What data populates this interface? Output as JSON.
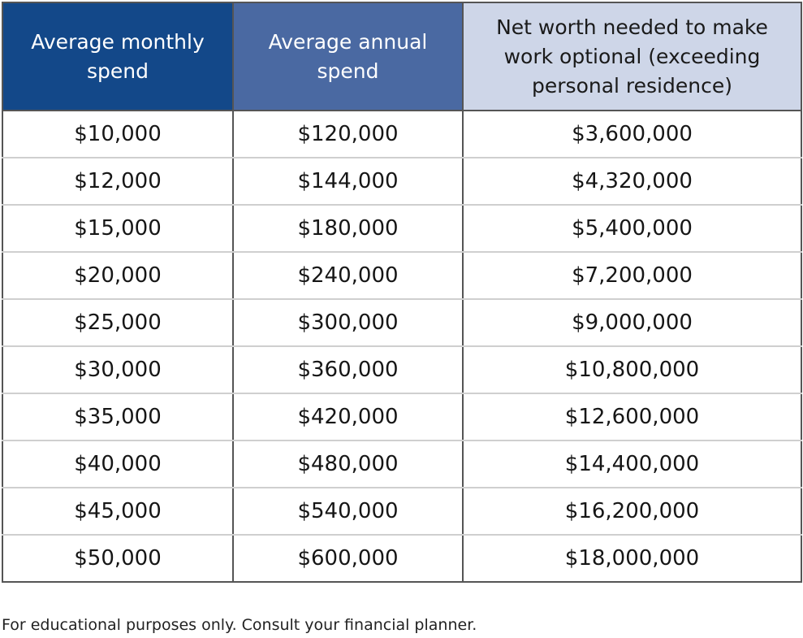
{
  "header_colors": {
    "col1_bg": "#134889",
    "col2_bg": "#4a69a2",
    "col3_bg": "#ced6e8"
  },
  "chart_data": {
    "type": "table",
    "columns": [
      "Average monthly spend",
      "Average annual spend",
      "Net worth needed to make work optional (exceeding personal residence)"
    ],
    "rows": [
      [
        "$10,000",
        "$120,000",
        "$3,600,000"
      ],
      [
        "$12,000",
        "$144,000",
        "$4,320,000"
      ],
      [
        "$15,000",
        "$180,000",
        "$5,400,000"
      ],
      [
        "$20,000",
        "$240,000",
        "$7,200,000"
      ],
      [
        "$25,000",
        "$300,000",
        "$9,000,000"
      ],
      [
        "$30,000",
        "$360,000",
        "$10,800,000"
      ],
      [
        "$35,000",
        "$420,000",
        "$12,600,000"
      ],
      [
        "$40,000",
        "$480,000",
        "$14,400,000"
      ],
      [
        "$45,000",
        "$540,000",
        "$16,200,000"
      ],
      [
        "$50,000",
        "$600,000",
        "$18,000,000"
      ]
    ],
    "footnote": "For educational purposes only. Consult your financial planner."
  }
}
